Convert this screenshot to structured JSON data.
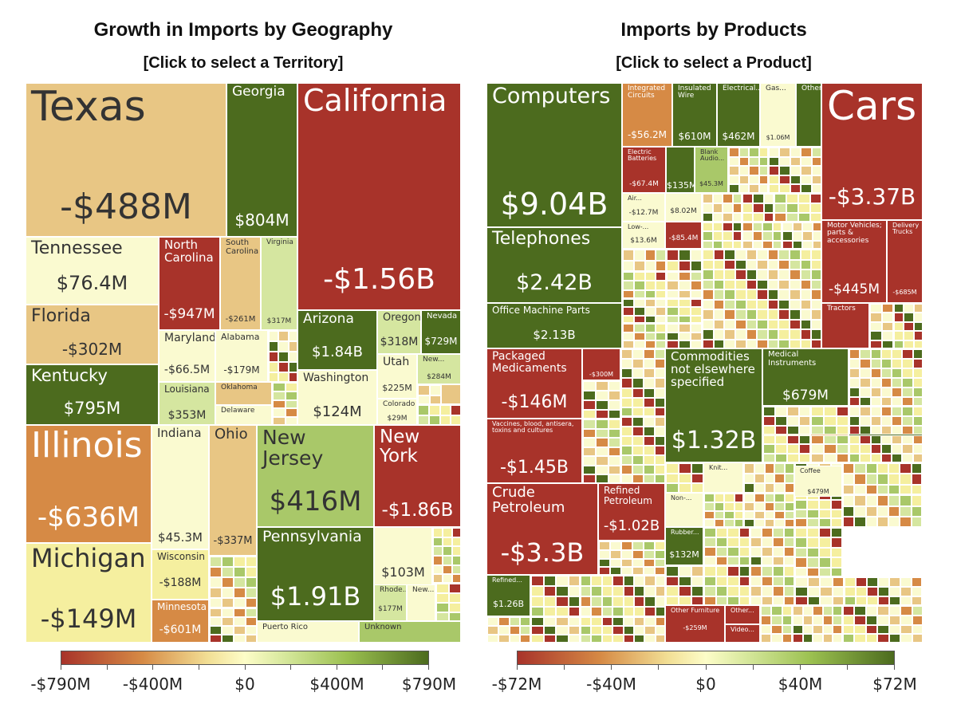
{
  "colors": {
    "dark_red": "#a8332a",
    "orange": "#d68a45",
    "light_orange": "#e8c684",
    "pale_yellow": "#f5ef9f",
    "cream": "#fafad0",
    "light_green": "#d5e6a0",
    "green": "#a9c869",
    "dark_green": "#4c6b1e"
  },
  "left": {
    "title": "Growth in Imports by Geography",
    "subtitle": "[Click to select a Territory]",
    "legend_ticks": [
      "-$790M",
      "-$400M",
      "$0",
      "$400M",
      "$790M"
    ]
  },
  "right": {
    "title": "Imports by Products",
    "subtitle": "[Click to select a Product]",
    "legend_ticks": [
      "-$72M",
      "-$40M",
      "$0",
      "$40M",
      "$72M"
    ]
  },
  "chart_data": [
    {
      "type": "treemap",
      "title": "Growth in Imports by Geography",
      "subtitle": "[Click to select a Territory]",
      "color_scale": {
        "min": "-$790M",
        "max": "$790M",
        "ticks": [
          "-$790M",
          "-$400M",
          "$0",
          "$400M",
          "$790M"
        ]
      },
      "tiles": [
        {
          "name": "Texas",
          "value": "-$488M"
        },
        {
          "name": "Georgia",
          "value": "$804M"
        },
        {
          "name": "California",
          "value": "-$1.56B"
        },
        {
          "name": "Tennessee",
          "value": "$76.4M"
        },
        {
          "name": "North Carolina",
          "value": "-$947M"
        },
        {
          "name": "South Carolina",
          "value": "-$261M"
        },
        {
          "name": "Virginia",
          "value": "$317M"
        },
        {
          "name": "Florida",
          "value": "-$302M"
        },
        {
          "name": "Maryland",
          "value": "-$66.5M"
        },
        {
          "name": "Alabama",
          "value": "-$179M"
        },
        {
          "name": "Kentucky",
          "value": "$795M"
        },
        {
          "name": "Louisiana",
          "value": "$353M"
        },
        {
          "name": "Oklahoma",
          "value": ""
        },
        {
          "name": "Delaware",
          "value": ""
        },
        {
          "name": "Arizona",
          "value": "$1.84B"
        },
        {
          "name": "Oregon",
          "value": "$318M"
        },
        {
          "name": "Nevada",
          "value": "$729M"
        },
        {
          "name": "Washington",
          "value": "$124M"
        },
        {
          "name": "Utah",
          "value": "$225M"
        },
        {
          "name": "New...",
          "value": "$284M"
        },
        {
          "name": "Colorado",
          "value": "$29M"
        },
        {
          "name": "Illinois",
          "value": "-$636M"
        },
        {
          "name": "Indiana",
          "value": "$45.3M"
        },
        {
          "name": "Ohio",
          "value": "-$337M"
        },
        {
          "name": "Michigan",
          "value": "-$149M"
        },
        {
          "name": "Wisconsin",
          "value": "-$188M"
        },
        {
          "name": "Minnesota",
          "value": "-$601M"
        },
        {
          "name": "New Jersey",
          "value": "$416M"
        },
        {
          "name": "New York",
          "value": "-$1.86B"
        },
        {
          "name": "Pennsylvania",
          "value": "$1.91B"
        },
        {
          "name": "",
          "value": "$103M"
        },
        {
          "name": "Rhode...",
          "value": "$177M"
        },
        {
          "name": "New...",
          "value": ""
        },
        {
          "name": "Puerto Rico",
          "value": ""
        },
        {
          "name": "Unknown",
          "value": ""
        }
      ]
    },
    {
      "type": "treemap",
      "title": "Imports by Products",
      "subtitle": "[Click to select a Product]",
      "color_scale": {
        "min": "-$72M",
        "max": "$72M",
        "ticks": [
          "-$72M",
          "-$40M",
          "$0",
          "$40M",
          "$72M"
        ]
      },
      "tiles": [
        {
          "name": "Computers",
          "value": "$9.04B"
        },
        {
          "name": "Integrated Circuits",
          "value": "-$56.2M"
        },
        {
          "name": "Insulated Wire",
          "value": "$610M"
        },
        {
          "name": "Electrical...",
          "value": "$462M"
        },
        {
          "name": "Gas...",
          "value": "$1.06M"
        },
        {
          "name": "Other...",
          "value": ""
        },
        {
          "name": "Electric Batteries",
          "value": "-$67.4M"
        },
        {
          "name": "",
          "value": "$135M"
        },
        {
          "name": "Blank Audio...",
          "value": "$45.3M"
        },
        {
          "name": "Air...",
          "value": "-$12.7M"
        },
        {
          "name": "",
          "value": "$8.02M"
        },
        {
          "name": "Low-...",
          "value": "$13.6M"
        },
        {
          "name": "",
          "value": "-$85.4M"
        },
        {
          "name": "Telephones",
          "value": "$2.42B"
        },
        {
          "name": "Office Machine Parts",
          "value": "$2.13B"
        },
        {
          "name": "Cars",
          "value": "-$3.37B"
        },
        {
          "name": "Motor Vehicles; parts & accessories",
          "value": "-$445M"
        },
        {
          "name": "Delivery Trucks",
          "value": "-$685M"
        },
        {
          "name": "Tractors",
          "value": ""
        },
        {
          "name": "Packaged Medicaments",
          "value": "-$146M"
        },
        {
          "name": "",
          "value": "-$300M"
        },
        {
          "name": "Vaccines, blood, antisera, toxins and cultures",
          "value": "-$1.45B"
        },
        {
          "name": "Commodities not elsewhere specified",
          "value": "$1.32B"
        },
        {
          "name": "Medical Instruments",
          "value": "$679M"
        },
        {
          "name": "Crude Petroleum",
          "value": "-$3.3B"
        },
        {
          "name": "Refined Petroleum",
          "value": "-$1.02B"
        },
        {
          "name": "Refined...",
          "value": "$1.26B"
        },
        {
          "name": "Knit...",
          "value": ""
        },
        {
          "name": "Non-...",
          "value": ""
        },
        {
          "name": "Coffee",
          "value": "$479M"
        },
        {
          "name": "Rubber...",
          "value": "$132M"
        },
        {
          "name": "Other Furniture",
          "value": "-$259M"
        },
        {
          "name": "Other...",
          "value": ""
        },
        {
          "name": "Video...",
          "value": ""
        }
      ]
    }
  ]
}
